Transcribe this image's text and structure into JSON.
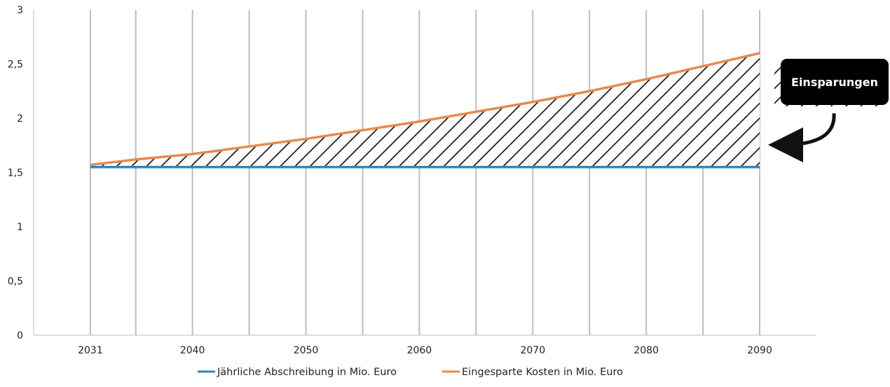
{
  "chart_data": {
    "type": "area",
    "title": "",
    "xlabel": "",
    "ylabel": "",
    "x": [
      2031,
      2035,
      2040,
      2045,
      2050,
      2055,
      2060,
      2065,
      2070,
      2075,
      2080,
      2085,
      2090
    ],
    "xlim": [
      2026,
      2095
    ],
    "x_ticks": [
      "2031",
      "2040",
      "2050",
      "2060",
      "2070",
      "2080",
      "2090"
    ],
    "ylim": [
      0,
      3
    ],
    "y_ticks": [
      "0",
      "0,5",
      "1",
      "1,5",
      "2",
      "2,5",
      "3"
    ],
    "series": [
      {
        "name": "Jährliche Abschreibung in Mio. Euro",
        "color": "#2E86C1",
        "values": [
          1.55,
          1.55,
          1.55,
          1.55,
          1.55,
          1.55,
          1.55,
          1.55,
          1.55,
          1.55,
          1.55,
          1.55,
          1.55
        ]
      },
      {
        "name": "Eingesparte Kosten in Mio. Euro",
        "color": "#E8894D",
        "values": [
          1.57,
          1.62,
          1.67,
          1.74,
          1.81,
          1.89,
          1.97,
          2.06,
          2.15,
          2.25,
          2.36,
          2.48,
          2.6
        ]
      }
    ],
    "shaded_region": "hatched area between the two series",
    "annotation": "Einsparungen",
    "grid": "vertical",
    "legend_position": "bottom"
  }
}
